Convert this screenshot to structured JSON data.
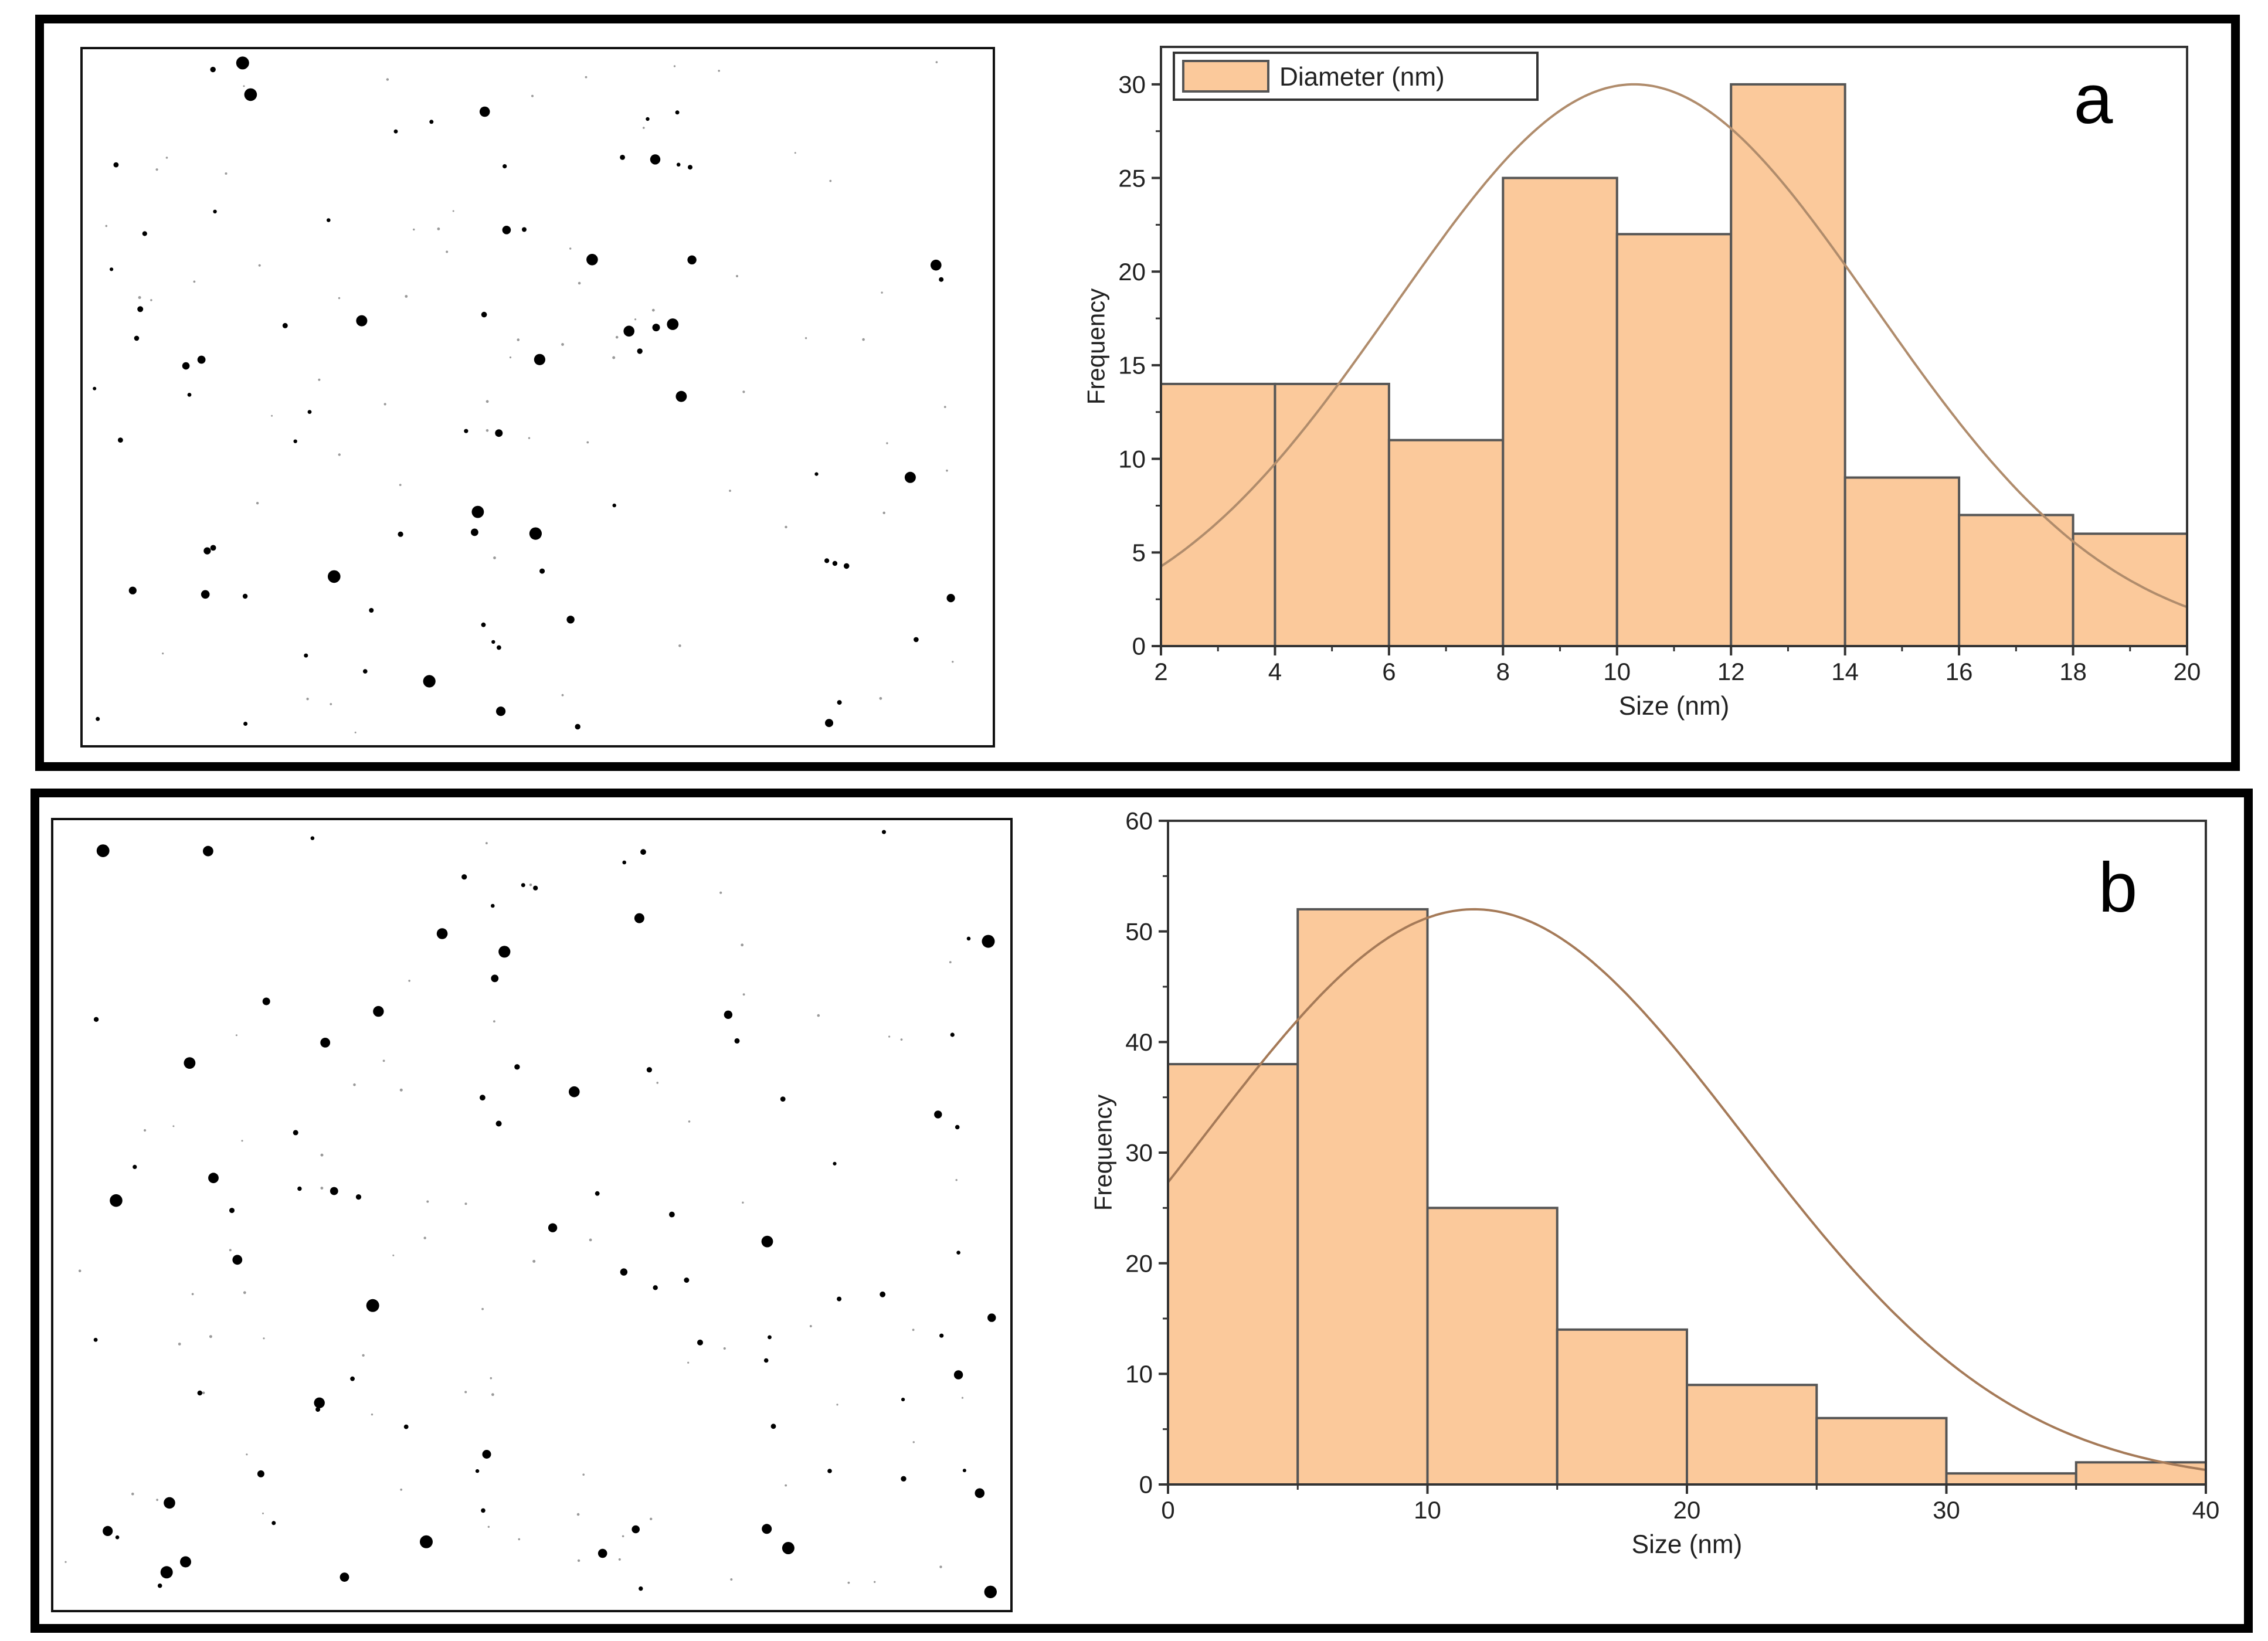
{
  "panels": [
    {
      "id": "a",
      "micrograph": {
        "particle_count": 140
      },
      "chart_data": {
        "type": "bar",
        "panel_label": "a",
        "bins": [
          [
            2,
            4
          ],
          [
            4,
            6
          ],
          [
            6,
            8
          ],
          [
            8,
            10
          ],
          [
            10,
            12
          ],
          [
            12,
            14
          ],
          [
            14,
            16
          ],
          [
            16,
            18
          ],
          [
            18,
            20
          ]
        ],
        "values": [
          14,
          14,
          11,
          25,
          22,
          30,
          9,
          7,
          6
        ],
        "fit": {
          "type": "gaussian",
          "peak_x": 10.3,
          "peak_y": 30,
          "sigma": 4.2
        },
        "xlim": [
          2,
          20
        ],
        "ylim": [
          0,
          32
        ],
        "xticks": [
          2,
          4,
          6,
          8,
          10,
          12,
          14,
          16,
          18,
          20
        ],
        "yticks": [
          0,
          5,
          10,
          15,
          20,
          25,
          30
        ],
        "xlabel": "Size (nm)",
        "ylabel": "Frequency",
        "legend": {
          "label": "Diameter (nm)",
          "position": "top-left"
        },
        "colors": {
          "bar": "#fbc99b",
          "bar_edge": "#555555",
          "fit": "#b08c6c"
        }
      }
    },
    {
      "id": "b",
      "micrograph": {
        "particle_count": 160
      },
      "chart_data": {
        "type": "bar",
        "panel_label": "b",
        "bins": [
          [
            0,
            5
          ],
          [
            5,
            10
          ],
          [
            10,
            15
          ],
          [
            15,
            20
          ],
          [
            20,
            25
          ],
          [
            25,
            30
          ],
          [
            30,
            35
          ],
          [
            35,
            40
          ]
        ],
        "values": [
          38,
          52,
          25,
          14,
          9,
          6,
          1,
          2
        ],
        "fit": {
          "type": "gaussian",
          "peak_x": 11.8,
          "peak_y": 52,
          "sigma": 10.4
        },
        "xlim": [
          0,
          40
        ],
        "ylim": [
          0,
          60
        ],
        "xticks": [
          0,
          10,
          20,
          30,
          40
        ],
        "yticks": [
          0,
          10,
          20,
          30,
          40,
          50,
          60
        ],
        "xlabel": "Size (nm)",
        "ylabel": "Frequency",
        "legend": null,
        "colors": {
          "bar": "#fbc99b",
          "bar_edge": "#555555",
          "fit": "#a57a58"
        }
      }
    }
  ]
}
